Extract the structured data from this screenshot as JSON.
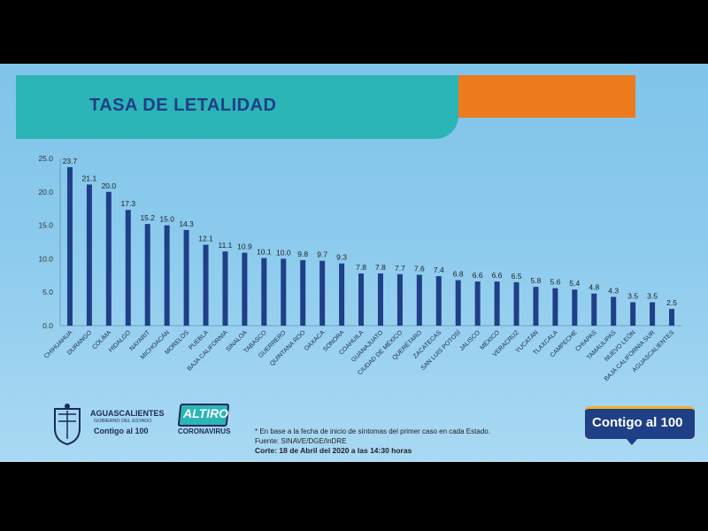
{
  "title": "TASA DE LETALIDAD",
  "chart_data": {
    "type": "bar",
    "title": "TASA DE LETALIDAD",
    "ylim": [
      0,
      25
    ],
    "yticks": [
      "0.0",
      "5.0",
      "10.0",
      "15.0",
      "20.0",
      "25.0"
    ],
    "grid": false,
    "bar_color": "#1f3f86",
    "categories": [
      "CHIHUAHUA",
      "DURANGO",
      "COLIMA",
      "HIDALGO",
      "NAYARIT",
      "MICHOACÁN",
      "MORELOS",
      "PUEBLA",
      "BAJA CALIFORNIA",
      "SINALOA",
      "TABASCO",
      "GUERRERO",
      "QUINTANA ROO",
      "OAXACA",
      "SONORA",
      "COAHUILA",
      "GUANAJUATO",
      "CIUDAD DE MÉXICO",
      "QUERÉTARO",
      "ZACATECAS",
      "SAN LUIS POTOSÍ",
      "JALISCO",
      "MÉXICO",
      "VERACRUZ",
      "YUCATÁN",
      "TLAXCALA",
      "CAMPECHE",
      "CHIAPAS",
      "TAMAULIPAS",
      "NUEVO LEÓN",
      "BAJA CALIFORNIA SUR",
      "AGUASCALIENTES"
    ],
    "values": [
      23.7,
      21.1,
      20.0,
      17.3,
      15.2,
      15.0,
      14.3,
      12.1,
      11.1,
      10.9,
      10.1,
      10.0,
      9.8,
      9.7,
      9.3,
      7.8,
      7.8,
      7.7,
      7.6,
      7.4,
      6.8,
      6.6,
      6.6,
      6.5,
      5.8,
      5.6,
      5.4,
      4.8,
      4.3,
      3.5,
      3.5,
      2.5
    ],
    "value_labels": [
      "23.7",
      "21.1",
      "20.0",
      "17.3",
      "15.2",
      "15.0",
      "14.3",
      "12.1",
      "11.1",
      "10.9",
      "10.1",
      "10.0",
      "9.8",
      "9.7",
      "9.3",
      "7.8",
      "7.8",
      "7.7",
      "7.6",
      "7.4",
      "6.8",
      "6.6",
      "6.6",
      "6.5",
      "5.8",
      "5.6",
      "5.4",
      "4.8",
      "4.3",
      "3.5",
      "3.5",
      "2.5"
    ]
  },
  "footer": {
    "note": "* En base a la fecha de inicio de síntomas del primer caso en cada Estado.",
    "source": "Fuente: SINAVE/DGE/InDRE",
    "cut": "Corte: 18 de Abril del 2020 a las 14:30 horas"
  },
  "logos": {
    "ags_name": "AGUASCALIENTES",
    "ags_sub": "GOBIERNO DEL ESTADO",
    "ags_contigo": "Contigo al 100",
    "altiro_line1": "ALTIRO",
    "altiro_line2": "CORONAVIRUS",
    "contigo_big": "Contigo al 100"
  },
  "colors": {
    "accent_orange": "#ee7a1e",
    "accent_teal": "#2bb5b7",
    "navy": "#1f3f86"
  }
}
